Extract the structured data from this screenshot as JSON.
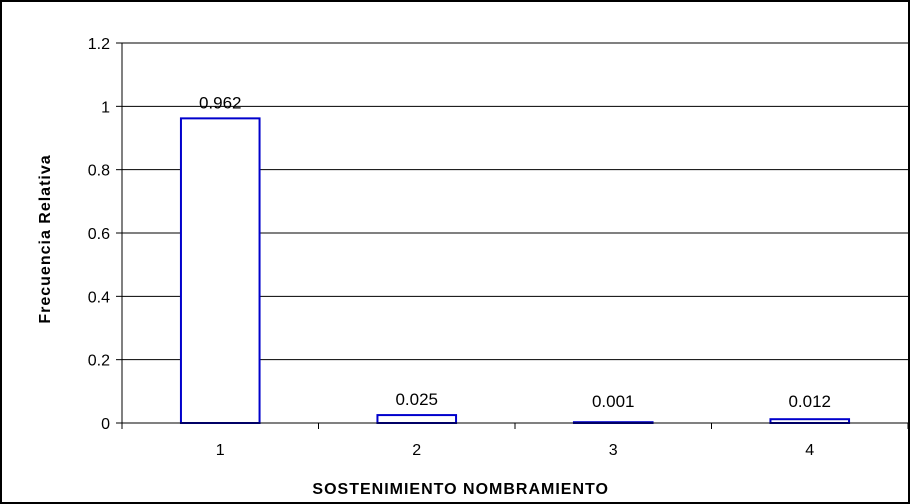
{
  "chart_data": {
    "type": "bar",
    "title": "",
    "xlabel": "SOSTENIMIENTO NOMBRAMIENTO",
    "ylabel": "Frecuencia Relativa",
    "categories": [
      "1",
      "2",
      "3",
      "4"
    ],
    "values": [
      0.962,
      0.025,
      0.001,
      0.012
    ],
    "data_labels": [
      "0.962",
      "0.025",
      "0.001",
      "0.012"
    ],
    "ylim": [
      0,
      1.2
    ],
    "yticks": [
      0,
      0.2,
      0.4,
      0.6,
      0.8,
      1,
      1.2
    ],
    "ytick_labels": [
      "0",
      "0.2",
      "0.4",
      "0.6",
      "0.8",
      "1",
      "1.2"
    ],
    "grid": true,
    "legend": "none",
    "colors": {
      "bar_stroke": "#0000cc",
      "bar_fill": "#ffffff",
      "gridline": "#000000",
      "plot_border": "#808080"
    }
  }
}
